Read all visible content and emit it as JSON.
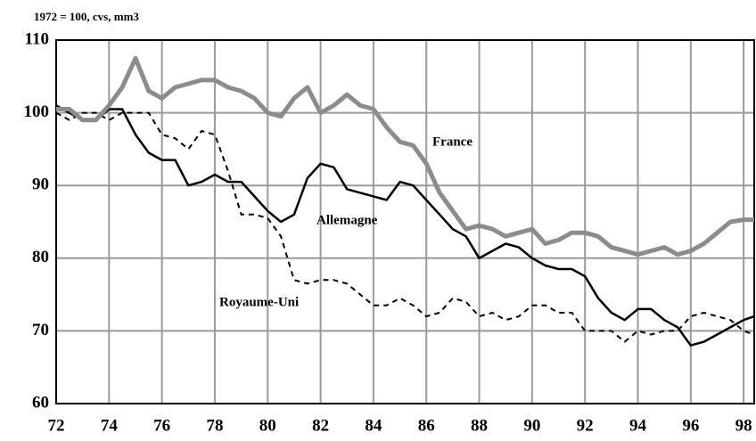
{
  "chart_data": {
    "type": "line",
    "subtitle": "1972 = 100, cvs, mm3",
    "x": [
      72,
      72.5,
      73,
      73.5,
      74,
      74.5,
      75,
      75.5,
      76,
      76.5,
      77,
      77.5,
      78,
      78.5,
      79,
      79.5,
      80,
      80.5,
      81,
      81.5,
      82,
      82.5,
      83,
      83.5,
      84,
      84.5,
      85,
      85.5,
      86,
      86.5,
      87,
      87.5,
      88,
      88.5,
      89,
      89.5,
      90,
      90.5,
      91,
      91.5,
      92,
      92.5,
      93,
      93.5,
      94,
      94.5,
      95,
      95.5,
      96,
      96.5,
      97,
      97.5,
      98,
      98.4
    ],
    "series": [
      {
        "name": "France",
        "color": "#8c8c8c",
        "style": "solid",
        "width": 5,
        "values": [
          100.5,
          100.5,
          99,
          99,
          101,
          103.5,
          107.5,
          103,
          102,
          103.5,
          104,
          104.5,
          104.5,
          103.5,
          103,
          102,
          100,
          99.5,
          102,
          103.5,
          100,
          101,
          102.5,
          101,
          100.5,
          98,
          96,
          95.5,
          93,
          89,
          86.5,
          84,
          84.5,
          84,
          83,
          83.5,
          84,
          82,
          82.5,
          83.5,
          83.5,
          83,
          81.5,
          81,
          80.5,
          81,
          81.5,
          80.5,
          81,
          82,
          83.5,
          85,
          85.3,
          85.3
        ]
      },
      {
        "name": "Allemagne",
        "color": "#000000",
        "style": "solid",
        "width": 2.5,
        "values": [
          101,
          100,
          99,
          99,
          100.5,
          100.5,
          97,
          94.5,
          93.5,
          93.5,
          90,
          90.5,
          91.5,
          90.5,
          90.5,
          88.5,
          86.5,
          85,
          86,
          91,
          93,
          92.5,
          89.5,
          89,
          88.5,
          88,
          90.5,
          90,
          88,
          86,
          84,
          83,
          80,
          81,
          82,
          81.5,
          80,
          79,
          78.5,
          78.5,
          77.5,
          74.5,
          72.5,
          71.5,
          73,
          73,
          71.5,
          70.5,
          68,
          68.5,
          69.5,
          70.5,
          71.5,
          72
        ]
      },
      {
        "name": "Royaume-Uni",
        "color": "#000000",
        "style": "dashed",
        "width": 2,
        "values": [
          100,
          99,
          100,
          100,
          99,
          100,
          100,
          100,
          97,
          96.5,
          95,
          97.5,
          97,
          92,
          86,
          86,
          85.5,
          83,
          77,
          76.5,
          77,
          77,
          76.5,
          75,
          73.5,
          73.5,
          74.5,
          73.5,
          72,
          72.5,
          74.5,
          74,
          72,
          72.5,
          71.5,
          72,
          73.5,
          73.5,
          72.5,
          72.5,
          70,
          70,
          70,
          68.5,
          70,
          69.5,
          70,
          70,
          72,
          72.5,
          72,
          71.5,
          70,
          69.5
        ]
      }
    ],
    "xlim": [
      72,
      98.4
    ],
    "xticks": [
      72,
      74,
      76,
      78,
      80,
      82,
      84,
      86,
      88,
      90,
      92,
      94,
      96,
      98
    ],
    "ylim": [
      60,
      110
    ],
    "yticks": [
      60,
      70,
      80,
      90,
      100,
      110
    ],
    "grid": true
  }
}
